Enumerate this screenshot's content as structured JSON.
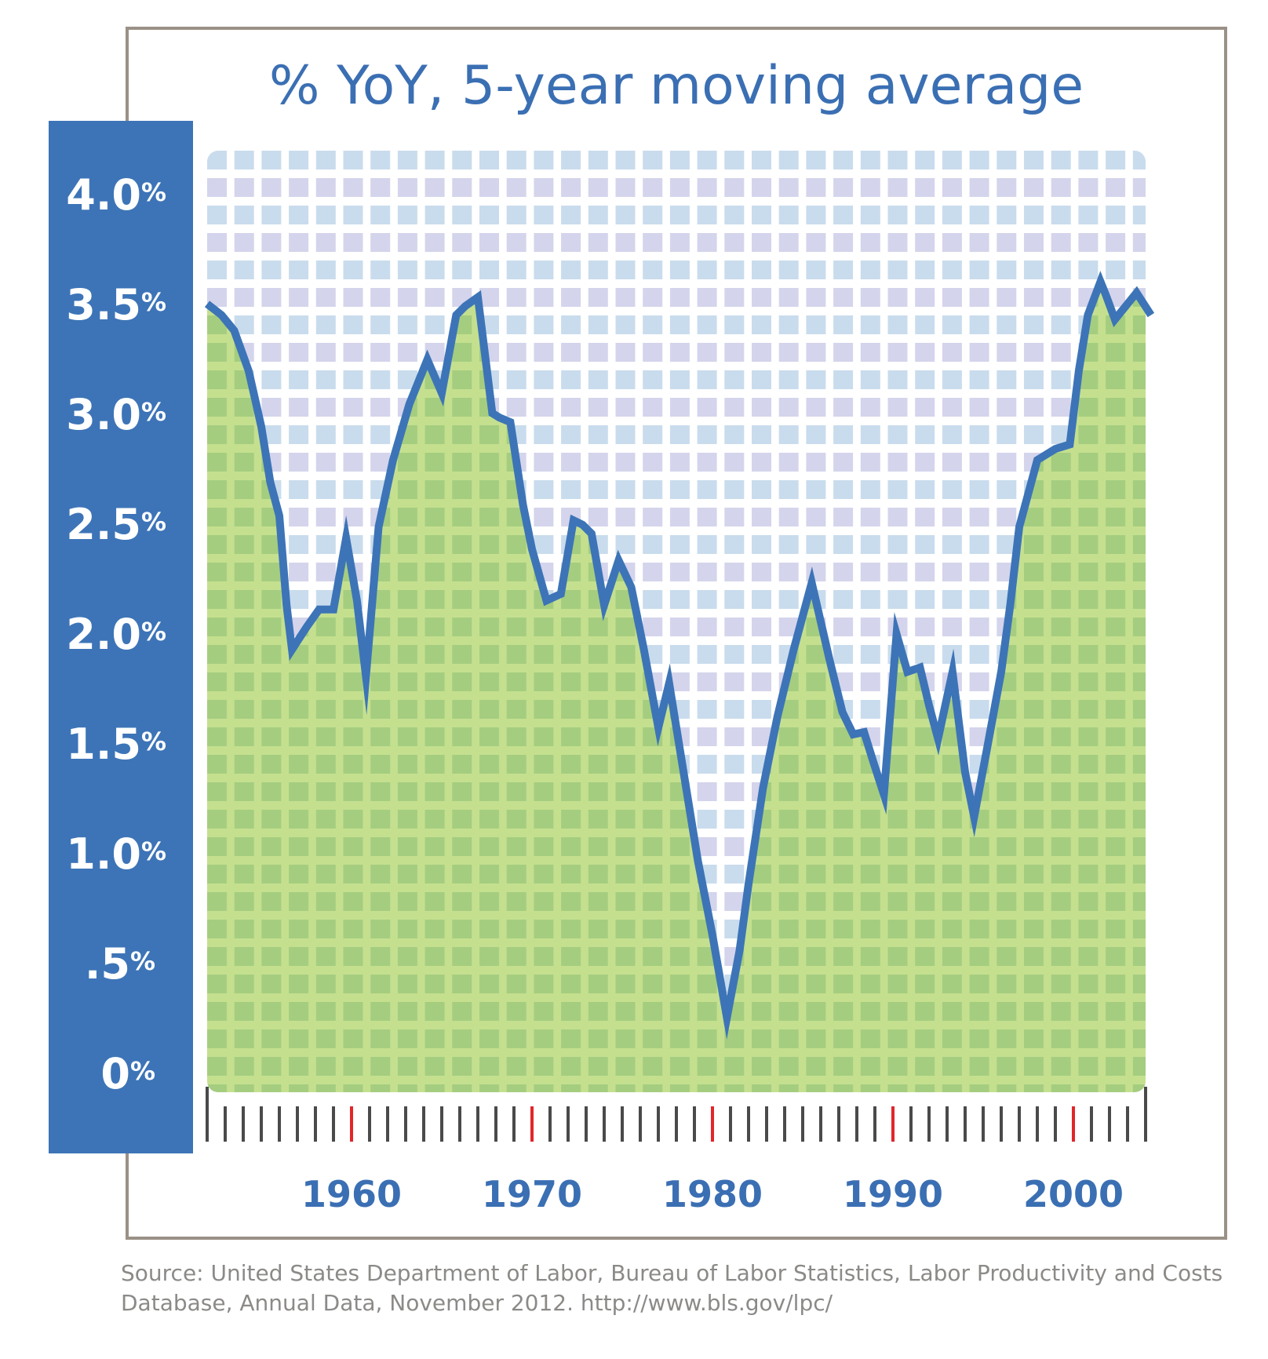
{
  "chart_data": {
    "type": "area",
    "title": "% YoY, 5-year moving average",
    "ylabel": "",
    "xlabel": "",
    "ylim": [
      0,
      4.0
    ],
    "xlim": [
      1952,
      2004
    ],
    "y_ticks": [
      {
        "value": 4.0,
        "label": "4.0",
        "suffix": "%"
      },
      {
        "value": 3.5,
        "label": "3.5",
        "suffix": "%"
      },
      {
        "value": 3.0,
        "label": "3.0",
        "suffix": "%"
      },
      {
        "value": 2.5,
        "label": "2.5",
        "suffix": "%"
      },
      {
        "value": 2.0,
        "label": "2.0",
        "suffix": "%"
      },
      {
        "value": 1.5,
        "label": "1.5",
        "suffix": "%"
      },
      {
        "value": 1.0,
        "label": "1.0",
        "suffix": "%"
      },
      {
        "value": 0.5,
        "label": ".5",
        "suffix": "%"
      },
      {
        "value": 0.0,
        "label": "0",
        "suffix": "%"
      }
    ],
    "x_ticks": [
      {
        "value": 1960,
        "label": "1960"
      },
      {
        "value": 1970,
        "label": "1970"
      },
      {
        "value": 1980,
        "label": "1980"
      },
      {
        "value": 1990,
        "label": "1990"
      },
      {
        "value": 2000,
        "label": "2000"
      }
    ],
    "series": [
      {
        "name": "% YoY, 5-year moving average",
        "x": [
          1952,
          1952.8,
          1953.5,
          1954.3,
          1955,
          1955.5,
          1956,
          1956.4,
          1956.7,
          1957.5,
          1958.2,
          1959,
          1959.7,
          1960.3,
          1960.8,
          1961.5,
          1962.3,
          1963.2,
          1964.2,
          1965,
          1965.8,
          1966.3,
          1967,
          1967.8,
          1968.2,
          1968.8,
          1969.5,
          1970,
          1970.8,
          1971.6,
          1972.3,
          1972.8,
          1973.3,
          1974,
          1974.8,
          1975.5,
          1976.2,
          1977,
          1977.6,
          1978.5,
          1979.2,
          1980,
          1980.8,
          1981.5,
          1982,
          1982.8,
          1983.6,
          1984.5,
          1985.5,
          1986.5,
          1987.2,
          1987.8,
          1988.4,
          1988.9,
          1989.5,
          1990.2,
          1990.8,
          1991.5,
          1992,
          1992.5,
          1993.3,
          1994,
          1994.5,
          1995.2,
          1996,
          1996.5,
          1997,
          1998,
          1999,
          1999.8,
          2000.3,
          2000.8,
          2001.5,
          2001.8,
          2002.3,
          2003.5,
          2004.3
        ],
        "values": [
          3.45,
          3.4,
          3.33,
          3.15,
          2.9,
          2.65,
          2.5,
          2.1,
          1.9,
          2.0,
          2.08,
          2.08,
          2.4,
          2.12,
          1.78,
          2.45,
          2.75,
          3.0,
          3.2,
          3.05,
          3.4,
          3.44,
          3.48,
          2.96,
          2.94,
          2.92,
          2.55,
          2.35,
          2.12,
          2.15,
          2.48,
          2.46,
          2.42,
          2.1,
          2.3,
          2.18,
          1.9,
          1.55,
          1.75,
          1.3,
          0.95,
          0.62,
          0.25,
          0.55,
          0.85,
          1.28,
          1.6,
          1.9,
          2.2,
          1.85,
          1.62,
          1.52,
          1.53,
          1.4,
          1.25,
          1.97,
          1.8,
          1.82,
          1.65,
          1.5,
          1.8,
          1.35,
          1.15,
          1.45,
          1.8,
          2.1,
          2.45,
          2.75,
          2.8,
          2.82,
          3.15,
          3.4,
          3.55,
          3.49,
          3.38,
          3.5,
          3.4
        ]
      }
    ]
  },
  "source": {
    "line1": "Source: United States Department of Labor, Bureau of Labor Statistics, Labor Productivity and Costs",
    "line2": "Database, Annual Data, November 2012. http://www.bls.gov/lpc/"
  },
  "colors": {
    "line": "#3d74b7",
    "fill": "#a5cd7f",
    "fill_grid": "#c4e08f",
    "background_grid_a": "#c9dced",
    "background_grid_b": "#d4d4ec",
    "major_tick": "#e2262a",
    "minor_tick": "#4a4a4a"
  }
}
